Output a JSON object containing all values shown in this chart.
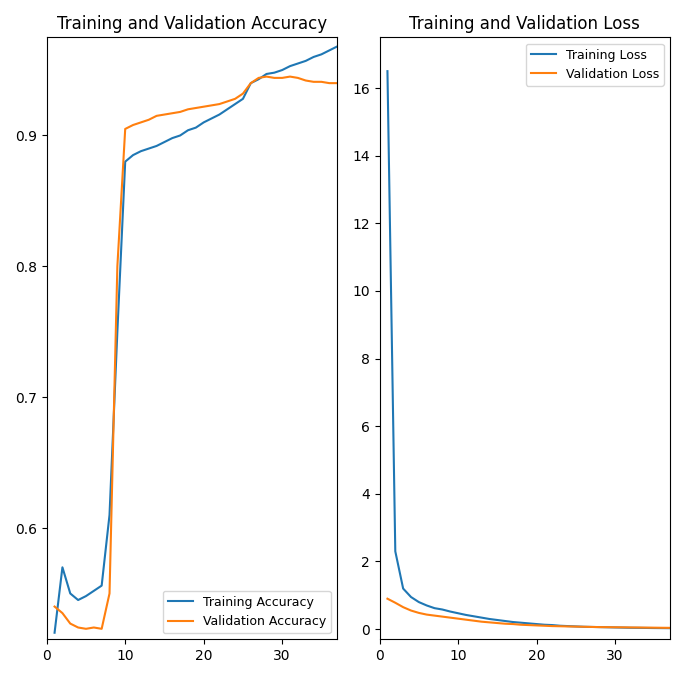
{
  "title_acc": "Training and Validation Accuracy",
  "title_loss": "Training and Validation Loss",
  "train_acc_color": "#1f77b4",
  "val_acc_color": "#ff7f0e",
  "train_loss_color": "#1f77b4",
  "val_loss_color": "#ff7f0e",
  "legend_acc": [
    "Training Accuracy",
    "Validation Accuracy"
  ],
  "legend_loss": [
    "Training Loss",
    "Validation Loss"
  ],
  "epochs": 37,
  "figsize": [
    6.85,
    6.78
  ],
  "dpi": 100,
  "acc_ylim": [
    0.515,
    0.975
  ],
  "loss_ylim": [
    -0.3,
    17.5
  ],
  "xlim": [
    0,
    37
  ],
  "train_acc": [
    0.52,
    0.57,
    0.55,
    0.545,
    0.548,
    0.552,
    0.556,
    0.61,
    0.75,
    0.88,
    0.885,
    0.888,
    0.89,
    0.892,
    0.895,
    0.898,
    0.9,
    0.904,
    0.906,
    0.91,
    0.913,
    0.916,
    0.92,
    0.924,
    0.928,
    0.94,
    0.943,
    0.947,
    0.948,
    0.95,
    0.953,
    0.955,
    0.957,
    0.96,
    0.962,
    0.965,
    0.968
  ],
  "val_acc": [
    0.54,
    0.535,
    0.527,
    0.524,
    0.523,
    0.524,
    0.523,
    0.55,
    0.8,
    0.905,
    0.908,
    0.91,
    0.912,
    0.915,
    0.916,
    0.917,
    0.918,
    0.92,
    0.921,
    0.922,
    0.923,
    0.924,
    0.926,
    0.928,
    0.932,
    0.94,
    0.944,
    0.945,
    0.944,
    0.944,
    0.945,
    0.944,
    0.942,
    0.941,
    0.941,
    0.94,
    0.94
  ],
  "train_loss": [
    16.5,
    2.3,
    1.2,
    0.95,
    0.8,
    0.7,
    0.62,
    0.58,
    0.52,
    0.47,
    0.42,
    0.38,
    0.34,
    0.3,
    0.27,
    0.24,
    0.21,
    0.19,
    0.17,
    0.15,
    0.13,
    0.12,
    0.1,
    0.09,
    0.08,
    0.07,
    0.065,
    0.06,
    0.055,
    0.05,
    0.045,
    0.04,
    0.038,
    0.035,
    0.032,
    0.03,
    0.028
  ],
  "val_loss": [
    0.9,
    0.78,
    0.65,
    0.55,
    0.48,
    0.43,
    0.4,
    0.37,
    0.34,
    0.31,
    0.28,
    0.25,
    0.22,
    0.2,
    0.18,
    0.16,
    0.15,
    0.13,
    0.12,
    0.11,
    0.1,
    0.09,
    0.085,
    0.08,
    0.075,
    0.07,
    0.065,
    0.06,
    0.058,
    0.055,
    0.053,
    0.05,
    0.048,
    0.045,
    0.043,
    0.04,
    0.038
  ]
}
